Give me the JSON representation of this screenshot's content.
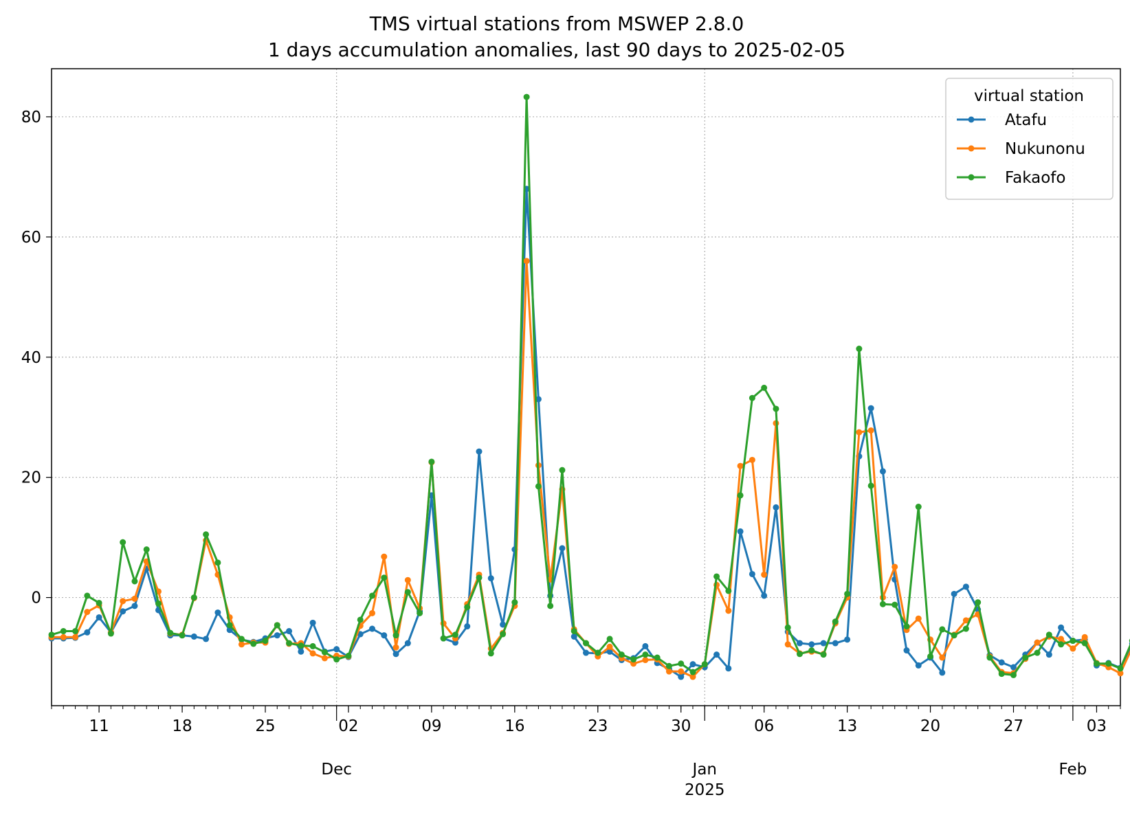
{
  "chart_data": {
    "type": "line",
    "title": "TMS virtual stations from MSWEP 2.8.0",
    "subtitle": "1 days accumulation anomalies, last 90 days to 2025-02-05",
    "xlabel": "",
    "ylabel": "",
    "x_start": "2024-11-07",
    "x_end": "2025-02-05",
    "xlim": [
      "2024-11-07",
      "2025-02-05"
    ],
    "ylim": [
      -18,
      88
    ],
    "grid": true,
    "legend_title": "virtual station",
    "legend_position": "top-right",
    "y_ticks": [
      0,
      20,
      40,
      60,
      80
    ],
    "x_day_ticks": [
      {
        "date": "2024-11-11",
        "label": "11"
      },
      {
        "date": "2024-11-18",
        "label": "18"
      },
      {
        "date": "2024-11-25",
        "label": "25"
      },
      {
        "date": "2024-12-02",
        "label": "02"
      },
      {
        "date": "2024-12-09",
        "label": "09"
      },
      {
        "date": "2024-12-16",
        "label": "16"
      },
      {
        "date": "2024-12-23",
        "label": "23"
      },
      {
        "date": "2024-12-30",
        "label": "30"
      },
      {
        "date": "2025-01-06",
        "label": "06"
      },
      {
        "date": "2025-01-13",
        "label": "13"
      },
      {
        "date": "2025-01-20",
        "label": "20"
      },
      {
        "date": "2025-01-27",
        "label": "27"
      },
      {
        "date": "2025-02-03",
        "label": "03"
      }
    ],
    "x_month_ticks": [
      {
        "date": "2024-12-01",
        "label": "Dec",
        "sublabel": ""
      },
      {
        "date": "2025-01-01",
        "label": "Jan",
        "sublabel": "2025"
      },
      {
        "date": "2025-02-01",
        "label": "Feb",
        "sublabel": ""
      }
    ],
    "series": [
      {
        "name": "Atafu",
        "color": "#1f77b4",
        "values": [
          -6.8,
          -6.8,
          -6.7,
          -5.8,
          -3.3,
          -5.8,
          -2.3,
          -1.4,
          4.8,
          -2.1,
          -6.3,
          -6.3,
          -6.5,
          -6.9,
          -2.5,
          -5.4,
          -7.0,
          -7.4,
          -6.8,
          -6.3,
          -5.6,
          -9.0,
          -4.2,
          -9.0,
          -8.6,
          -9.9,
          -6.1,
          -5.2,
          -6.3,
          -9.4,
          -7.6,
          -2.3,
          17.0,
          -6.8,
          -7.5,
          -4.8,
          24.3,
          3.2,
          -4.5,
          8.0,
          68.0,
          33.0,
          0.3,
          8.2,
          -6.5,
          -9.2,
          -9.3,
          -9.0,
          -10.4,
          -10.1,
          -8.1,
          -10.9,
          -11.9,
          -13.2,
          -11.1,
          -11.6,
          -9.5,
          -11.8,
          11.0,
          3.9,
          0.3,
          15.0,
          -5.7,
          -7.6,
          -7.8,
          -7.6,
          -7.6,
          -7.0,
          23.5,
          31.5,
          21.0,
          3.0,
          -8.8,
          -11.3,
          -10.0,
          -12.5,
          0.6,
          1.8,
          -2.0,
          -9.6,
          -10.8,
          -11.6,
          -9.5,
          -7.5,
          -9.5,
          -5.0,
          -7.2,
          -7.0,
          -11.3,
          -10.9,
          -11.7,
          -7.7
        ]
      },
      {
        "name": "Nukunonu",
        "color": "#ff7f0e",
        "values": [
          -6.6,
          -6.6,
          -6.6,
          -2.4,
          -1.3,
          -5.8,
          -0.6,
          -0.2,
          6.0,
          1.0,
          -6.0,
          -6.2,
          -0.1,
          9.5,
          3.8,
          -3.3,
          -7.8,
          -7.5,
          -7.5,
          -4.6,
          -7.7,
          -7.6,
          -9.3,
          -10.1,
          -9.7,
          -9.8,
          -4.7,
          -2.6,
          6.8,
          -8.3,
          2.9,
          -1.8,
          22.5,
          -4.3,
          -6.8,
          -1.1,
          3.8,
          -8.5,
          -5.9,
          -1.4,
          56.0,
          22.0,
          3.0,
          18.0,
          -5.3,
          -7.6,
          -9.8,
          -8.2,
          -10.1,
          -11.0,
          -10.4,
          -10.3,
          -12.3,
          -12.3,
          -13.2,
          -11.1,
          2.1,
          -2.2,
          21.9,
          22.9,
          3.8,
          29.0,
          -7.8,
          -9.3,
          -9.0,
          -9.4,
          -4.3,
          0.0,
          27.5,
          27.8,
          0.0,
          5.1,
          -5.4,
          -3.5,
          -7.0,
          -10.0,
          -6.2,
          -3.8,
          -2.8,
          -9.8,
          -12.4,
          -12.6,
          -10.2,
          -7.5,
          -6.5,
          -6.9,
          -8.5,
          -6.6,
          -10.9,
          -11.6,
          -12.6,
          -8.3
        ]
      },
      {
        "name": "Fakaofo",
        "color": "#2ca02c",
        "values": [
          -6.2,
          -5.6,
          -5.6,
          0.3,
          -0.9,
          -6.0,
          9.2,
          2.7,
          8.0,
          -1.0,
          -5.9,
          -6.3,
          0.0,
          10.5,
          5.8,
          -4.6,
          -6.9,
          -7.7,
          -7.2,
          -4.6,
          -7.6,
          -8.0,
          -8.1,
          -9.1,
          -10.3,
          -9.7,
          -3.7,
          0.3,
          3.3,
          -6.3,
          0.9,
          -2.6,
          22.6,
          -6.8,
          -6.2,
          -1.6,
          3.3,
          -9.3,
          -6.1,
          -0.8,
          83.3,
          18.5,
          -1.4,
          21.2,
          -5.6,
          -7.6,
          -9.2,
          -6.9,
          -9.5,
          -10.3,
          -9.5,
          -10.0,
          -11.4,
          -11.0,
          -12.4,
          -11.1,
          3.5,
          1.1,
          17.0,
          33.2,
          34.9,
          31.4,
          -5.0,
          -9.4,
          -8.8,
          -9.5,
          -4.0,
          0.6,
          41.4,
          18.6,
          -1.1,
          -1.2,
          -4.8,
          15.1,
          -9.8,
          -5.3,
          -6.3,
          -5.2,
          -0.8,
          -10.0,
          -12.7,
          -12.9,
          -10.0,
          -9.2,
          -6.2,
          -7.8,
          -7.2,
          -7.6,
          -11.0,
          -11.0,
          -11.8,
          -7.2
        ]
      }
    ]
  }
}
